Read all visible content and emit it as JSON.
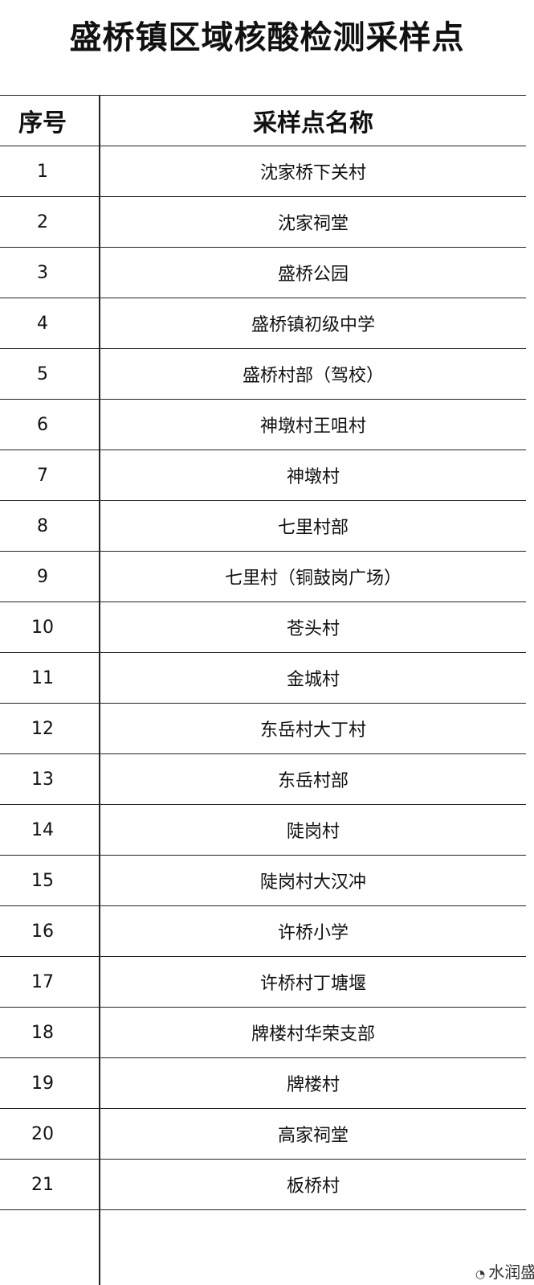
{
  "header": {
    "title": "盛桥镇区域核酸检测采样点"
  },
  "table": {
    "columns": [
      "序号",
      "采样点名称"
    ],
    "rows": [
      [
        1,
        "沈家桥下关村"
      ],
      [
        2,
        "沈家祠堂"
      ],
      [
        3,
        "盛桥公园"
      ],
      [
        4,
        "盛桥镇初级中学"
      ],
      [
        5,
        "盛桥村部（驾校）"
      ],
      [
        6,
        "神墩村王咀村"
      ],
      [
        7,
        "神墩村"
      ],
      [
        8,
        "七里村部"
      ],
      [
        9,
        "七里村（铜鼓岗广场）"
      ],
      [
        10,
        "苍头村"
      ],
      [
        11,
        "金城村"
      ],
      [
        12,
        "东岳村大丁村"
      ],
      [
        13,
        "东岳村部"
      ],
      [
        14,
        "陡岗村"
      ],
      [
        15,
        "陡岗村大汉冲"
      ],
      [
        16,
        "许桥小学"
      ],
      [
        17,
        "许桥村丁塘堰"
      ],
      [
        18,
        "牌楼村华荣支部"
      ],
      [
        19,
        "牌楼村"
      ],
      [
        20,
        "高家祠堂"
      ],
      [
        21,
        "板桥村"
      ]
    ]
  },
  "watermark": "水润盛"
}
